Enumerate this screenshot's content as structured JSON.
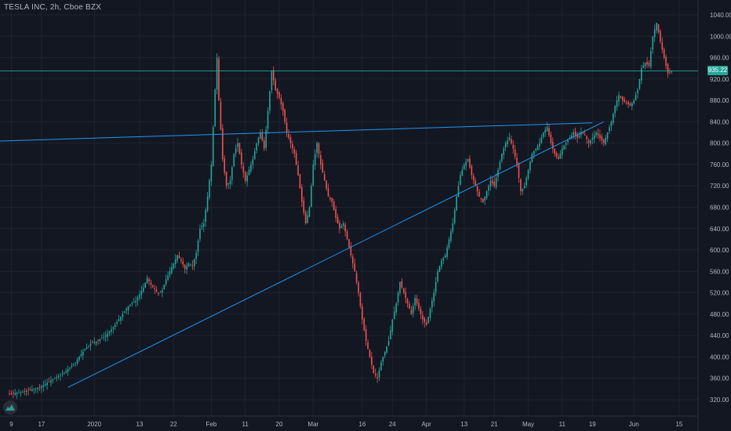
{
  "header": {
    "title": "TESLA INC, 2h, Cboe BZX"
  },
  "current_price_label": "935.22",
  "colors": {
    "background": "#131722",
    "grid": "#1f2330",
    "text": "#b2b5be",
    "up": "#26a69a",
    "down": "#ef5350",
    "trendline": "#2196f3",
    "price_line": "#26a69a"
  },
  "chart_data": {
    "type": "candlestick",
    "title": "TESLA INC, 2h, Cboe BZX",
    "xlabel": "",
    "ylabel": "",
    "ylim": [
      300,
      1050
    ],
    "y_ticks": [
      320,
      360,
      400,
      440,
      480,
      520,
      560,
      600,
      640,
      680,
      720,
      760,
      800,
      840,
      880,
      920,
      960,
      1000,
      1040
    ],
    "y_tick_labels": [
      "320.00",
      "360.00",
      "400.00",
      "440.00",
      "480.00",
      "520.00",
      "560.00",
      "600.00",
      "640.00",
      "680.00",
      "720.00",
      "760.00",
      "800.00",
      "840.00",
      "880.00",
      "920.00",
      "960.00",
      "1000.00",
      "1040.00"
    ],
    "x_ticks": [
      "9",
      "17",
      "2020",
      "13",
      "22",
      "Feb",
      "11",
      "20",
      "Mar",
      "16",
      "24",
      "Apr",
      "13",
      "21",
      "May",
      "11",
      "19",
      "Jun",
      "15"
    ],
    "x_tick_values": [
      1,
      9,
      23,
      35,
      44,
      54,
      63,
      72,
      81,
      94,
      102,
      111,
      121,
      129,
      138,
      147,
      155,
      166,
      178
    ],
    "grid": true,
    "legend": "none",
    "current_price": 935.22,
    "series": [
      {
        "kind": "price_path",
        "values": [
          [
            0,
            330
          ],
          [
            3,
            333
          ],
          [
            6,
            338
          ],
          [
            9,
            345
          ],
          [
            12,
            358
          ],
          [
            15,
            370
          ],
          [
            18,
            390
          ],
          [
            20,
            410
          ],
          [
            22,
            425
          ],
          [
            24,
            430
          ],
          [
            26,
            440
          ],
          [
            28,
            455
          ],
          [
            30,
            475
          ],
          [
            32,
            495
          ],
          [
            34,
            505
          ],
          [
            36,
            530
          ],
          [
            37,
            548
          ],
          [
            38,
            535
          ],
          [
            40,
            518
          ],
          [
            41,
            525
          ],
          [
            42,
            545
          ],
          [
            43,
            560
          ],
          [
            44,
            575
          ],
          [
            45,
            590
          ],
          [
            46,
            580
          ],
          [
            47,
            565
          ],
          [
            48,
            575
          ],
          [
            49,
            570
          ],
          [
            50,
            595
          ],
          [
            51,
            640
          ],
          [
            52,
            650
          ],
          [
            53,
            700
          ],
          [
            54,
            760
          ],
          [
            55,
            900
          ],
          [
            55.5,
            960
          ],
          [
            56,
            880
          ],
          [
            57,
            770
          ],
          [
            58,
            720
          ],
          [
            59,
            730
          ],
          [
            60,
            780
          ],
          [
            61,
            800
          ],
          [
            62,
            760
          ],
          [
            63,
            730
          ],
          [
            64,
            750
          ],
          [
            65,
            770
          ],
          [
            66,
            800
          ],
          [
            67,
            820
          ],
          [
            68,
            790
          ],
          [
            69,
            860
          ],
          [
            70,
            935
          ],
          [
            71,
            900
          ],
          [
            72,
            885
          ],
          [
            73,
            860
          ],
          [
            74,
            820
          ],
          [
            75,
            800
          ],
          [
            76,
            780
          ],
          [
            77,
            740
          ],
          [
            78,
            690
          ],
          [
            79,
            650
          ],
          [
            80,
            680
          ],
          [
            81,
            760
          ],
          [
            82,
            800
          ],
          [
            83,
            760
          ],
          [
            84,
            730
          ],
          [
            85,
            700
          ],
          [
            86,
            690
          ],
          [
            87,
            660
          ],
          [
            88,
            640
          ],
          [
            89,
            650
          ],
          [
            90,
            620
          ],
          [
            91,
            590
          ],
          [
            92,
            560
          ],
          [
            93,
            520
          ],
          [
            94,
            470
          ],
          [
            95,
            430
          ],
          [
            96,
            400
          ],
          [
            97,
            370
          ],
          [
            98,
            360
          ],
          [
            99,
            390
          ],
          [
            100,
            410
          ],
          [
            101,
            430
          ],
          [
            102,
            470
          ],
          [
            103,
            500
          ],
          [
            104,
            540
          ],
          [
            105,
            520
          ],
          [
            106,
            500
          ],
          [
            107,
            480
          ],
          [
            108,
            510
          ],
          [
            109,
            490
          ],
          [
            110,
            470
          ],
          [
            111,
            460
          ],
          [
            112,
            490
          ],
          [
            113,
            520
          ],
          [
            114,
            560
          ],
          [
            115,
            580
          ],
          [
            116,
            590
          ],
          [
            117,
            620
          ],
          [
            118,
            650
          ],
          [
            119,
            700
          ],
          [
            120,
            740
          ],
          [
            121,
            760
          ],
          [
            122,
            770
          ],
          [
            123,
            740
          ],
          [
            124,
            720
          ],
          [
            125,
            700
          ],
          [
            126,
            690
          ],
          [
            127,
            710
          ],
          [
            128,
            730
          ],
          [
            129,
            720
          ],
          [
            130,
            750
          ],
          [
            131,
            780
          ],
          [
            132,
            800
          ],
          [
            133,
            810
          ],
          [
            134,
            790
          ],
          [
            135,
            760
          ],
          [
            136,
            710
          ],
          [
            137,
            720
          ],
          [
            138,
            750
          ],
          [
            139,
            780
          ],
          [
            140,
            790
          ],
          [
            141,
            800
          ],
          [
            142,
            820
          ],
          [
            143,
            830
          ],
          [
            144,
            800
          ],
          [
            145,
            780
          ],
          [
            146,
            770
          ],
          [
            147,
            790
          ],
          [
            148,
            800
          ],
          [
            149,
            810
          ],
          [
            150,
            820
          ],
          [
            151,
            810
          ],
          [
            152,
            820
          ],
          [
            153,
            815
          ],
          [
            154,
            800
          ],
          [
            155,
            810
          ],
          [
            156,
            820
          ],
          [
            157,
            810
          ],
          [
            158,
            800
          ],
          [
            159,
            820
          ],
          [
            160,
            840
          ],
          [
            161,
            870
          ],
          [
            162,
            890
          ],
          [
            163,
            880
          ],
          [
            164,
            875
          ],
          [
            165,
            870
          ],
          [
            166,
            880
          ],
          [
            167,
            900
          ],
          [
            168,
            940
          ],
          [
            169,
            950
          ],
          [
            170,
            945
          ],
          [
            171,
            1000
          ],
          [
            172,
            1025
          ],
          [
            173,
            990
          ],
          [
            174,
            960
          ],
          [
            175,
            930
          ],
          [
            176,
            935
          ]
        ]
      }
    ],
    "trendlines": [
      {
        "from": [
          -2,
          804
        ],
        "to": [
          155,
          838
        ]
      },
      {
        "from": [
          16,
          343
        ],
        "to": [
          158,
          840
        ]
      }
    ],
    "horizontal_lines": [
      {
        "y": 935.22
      }
    ]
  }
}
